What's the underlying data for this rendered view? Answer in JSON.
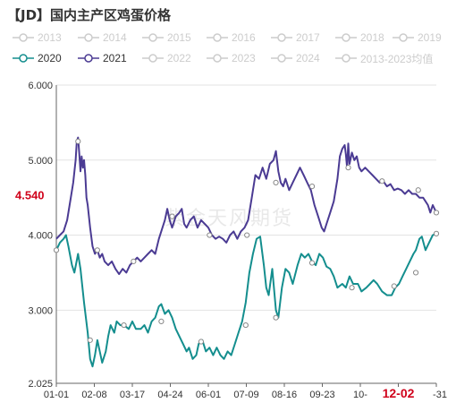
{
  "title": "【JD】国内主产区鸡蛋价格",
  "watermark": "紫金天风期货",
  "colors": {
    "s2020": "#148e8e",
    "s2021": "#4b3b93",
    "off": "#cccccc",
    "highlight": "#d0021b"
  },
  "legend": [
    {
      "label": "2013",
      "active": false
    },
    {
      "label": "2014",
      "active": false
    },
    {
      "label": "2015",
      "active": false
    },
    {
      "label": "2016",
      "active": false
    },
    {
      "label": "2017",
      "active": false
    },
    {
      "label": "2018",
      "active": false
    },
    {
      "label": "2019",
      "active": false
    },
    {
      "label": "2020",
      "active": true,
      "color": "#148e8e"
    },
    {
      "label": "2021",
      "active": true,
      "color": "#4b3b93"
    },
    {
      "label": "2022",
      "active": false
    },
    {
      "label": "2023",
      "active": false
    },
    {
      "label": "2024",
      "active": false
    },
    {
      "label": "2013-2023均值",
      "active": false
    }
  ],
  "chart_data": {
    "type": "line",
    "title": "【JD】国内主产区鸡蛋价格",
    "x_ticks": [
      "01-01",
      "02-08",
      "03-17",
      "04-24",
      "06-01",
      "07-09",
      "08-16",
      "09-23",
      "10-",
      "12-02",
      "-31"
    ],
    "y_ticks": [
      "6.000",
      "5.000",
      "4.000",
      "3.000",
      "2.025"
    ],
    "ylim": [
      2.025,
      6.0
    ],
    "current_value": "4.540",
    "highlight_x_label": "12-02",
    "grid": true,
    "series": [
      {
        "name": "2020",
        "color": "#148e8e",
        "points": [
          [
            0,
            3.8
          ],
          [
            3,
            3.9
          ],
          [
            6,
            3.95
          ],
          [
            8,
            4.0
          ],
          [
            10,
            3.85
          ],
          [
            13,
            3.6
          ],
          [
            15,
            3.5
          ],
          [
            18,
            3.75
          ],
          [
            20,
            3.55
          ],
          [
            23,
            3.1
          ],
          [
            26,
            2.7
          ],
          [
            28,
            2.35
          ],
          [
            30,
            2.25
          ],
          [
            32,
            2.4
          ],
          [
            34,
            2.6
          ],
          [
            36,
            2.45
          ],
          [
            38,
            2.3
          ],
          [
            41,
            2.45
          ],
          [
            43,
            2.65
          ],
          [
            45,
            2.8
          ],
          [
            48,
            2.7
          ],
          [
            50,
            2.85
          ],
          [
            53,
            2.8
          ],
          [
            56,
            2.8
          ],
          [
            60,
            2.75
          ],
          [
            63,
            2.85
          ],
          [
            66,
            2.75
          ],
          [
            70,
            2.75
          ],
          [
            73,
            2.8
          ],
          [
            76,
            2.7
          ],
          [
            79,
            2.85
          ],
          [
            82,
            2.9
          ],
          [
            85,
            3.05
          ],
          [
            87,
            3.08
          ],
          [
            90,
            2.95
          ],
          [
            93,
            3.0
          ],
          [
            96,
            2.9
          ],
          [
            99,
            2.75
          ],
          [
            102,
            2.65
          ],
          [
            105,
            2.55
          ],
          [
            108,
            2.45
          ],
          [
            110,
            2.5
          ],
          [
            113,
            2.35
          ],
          [
            116,
            2.4
          ],
          [
            118,
            2.55
          ],
          [
            121,
            2.6
          ],
          [
            124,
            2.45
          ],
          [
            127,
            2.5
          ],
          [
            130,
            2.4
          ],
          [
            133,
            2.5
          ],
          [
            136,
            2.4
          ],
          [
            139,
            2.35
          ],
          [
            142,
            2.45
          ],
          [
            145,
            2.4
          ],
          [
            148,
            2.55
          ],
          [
            151,
            2.7
          ],
          [
            154,
            2.85
          ],
          [
            157,
            3.1
          ],
          [
            160,
            3.5
          ],
          [
            163,
            3.75
          ],
          [
            166,
            3.95
          ],
          [
            169,
            3.98
          ],
          [
            172,
            3.6
          ],
          [
            174,
            3.3
          ],
          [
            176,
            3.2
          ],
          [
            179,
            3.55
          ],
          [
            182,
            3.0
          ],
          [
            184,
            2.9
          ],
          [
            187,
            3.3
          ],
          [
            190,
            3.55
          ],
          [
            193,
            3.5
          ],
          [
            196,
            3.35
          ],
          [
            200,
            3.6
          ],
          [
            203,
            3.75
          ],
          [
            206,
            3.7
          ],
          [
            209,
            3.75
          ],
          [
            212,
            3.65
          ],
          [
            215,
            3.6
          ],
          [
            218,
            3.75
          ],
          [
            221,
            3.7
          ],
          [
            224,
            3.58
          ],
          [
            227,
            3.55
          ],
          [
            230,
            3.45
          ],
          [
            233,
            3.3
          ],
          [
            237,
            3.35
          ],
          [
            240,
            3.3
          ],
          [
            243,
            3.45
          ],
          [
            246,
            3.35
          ],
          [
            250,
            3.35
          ],
          [
            253,
            3.25
          ],
          [
            257,
            3.3
          ],
          [
            260,
            3.35
          ],
          [
            263,
            3.4
          ],
          [
            266,
            3.35
          ],
          [
            270,
            3.25
          ],
          [
            274,
            3.2
          ],
          [
            278,
            3.2
          ],
          [
            281,
            3.3
          ],
          [
            284,
            3.35
          ],
          [
            287,
            3.45
          ],
          [
            290,
            3.55
          ],
          [
            293,
            3.65
          ],
          [
            296,
            3.75
          ],
          [
            298,
            3.8
          ],
          [
            301,
            3.95
          ],
          [
            303,
            3.98
          ],
          [
            306,
            3.8
          ],
          [
            309,
            3.9
          ],
          [
            312,
            4.0
          ],
          [
            315,
            4.02
          ]
        ],
        "markers": [
          [
            0,
            3.8
          ],
          [
            28,
            2.6
          ],
          [
            56,
            2.8
          ],
          [
            87,
            2.85
          ],
          [
            120,
            2.58
          ],
          [
            157,
            2.8
          ],
          [
            182,
            2.9
          ],
          [
            212,
            3.63
          ],
          [
            245,
            3.3
          ],
          [
            280,
            3.32
          ],
          [
            298,
            3.5
          ],
          [
            315,
            4.02
          ]
        ]
      },
      {
        "name": "2021",
        "color": "#4b3b93",
        "points": [
          [
            0,
            3.95
          ],
          [
            3,
            4.0
          ],
          [
            6,
            4.05
          ],
          [
            9,
            4.2
          ],
          [
            12,
            4.5
          ],
          [
            14,
            4.7
          ],
          [
            16,
            5.0
          ],
          [
            17,
            5.25
          ],
          [
            18,
            5.3
          ],
          [
            19,
            5.1
          ],
          [
            20,
            4.85
          ],
          [
            21,
            5.05
          ],
          [
            22,
            4.9
          ],
          [
            23,
            5.0
          ],
          [
            24,
            4.8
          ],
          [
            25,
            4.5
          ],
          [
            26,
            4.4
          ],
          [
            28,
            4.1
          ],
          [
            30,
            3.85
          ],
          [
            32,
            3.75
          ],
          [
            34,
            3.8
          ],
          [
            36,
            3.7
          ],
          [
            38,
            3.75
          ],
          [
            40,
            3.65
          ],
          [
            43,
            3.6
          ],
          [
            46,
            3.65
          ],
          [
            49,
            3.55
          ],
          [
            52,
            3.48
          ],
          [
            55,
            3.55
          ],
          [
            58,
            3.5
          ],
          [
            61,
            3.6
          ],
          [
            64,
            3.65
          ],
          [
            67,
            3.7
          ],
          [
            70,
            3.65
          ],
          [
            73,
            3.7
          ],
          [
            76,
            3.75
          ],
          [
            79,
            3.8
          ],
          [
            82,
            3.75
          ],
          [
            85,
            3.95
          ],
          [
            88,
            4.1
          ],
          [
            90,
            4.2
          ],
          [
            92,
            4.35
          ],
          [
            94,
            4.2
          ],
          [
            96,
            4.1
          ],
          [
            99,
            4.25
          ],
          [
            102,
            4.3
          ],
          [
            104,
            4.35
          ],
          [
            106,
            4.15
          ],
          [
            108,
            4.1
          ],
          [
            111,
            4.2
          ],
          [
            114,
            4.25
          ],
          [
            117,
            4.1
          ],
          [
            120,
            4.2
          ],
          [
            123,
            4.15
          ],
          [
            126,
            4.1
          ],
          [
            129,
            4.0
          ],
          [
            132,
            3.95
          ],
          [
            135,
            3.98
          ],
          [
            138,
            3.95
          ],
          [
            141,
            3.9
          ],
          [
            144,
            4.0
          ],
          [
            147,
            4.05
          ],
          [
            150,
            3.95
          ],
          [
            153,
            4.05
          ],
          [
            156,
            4.1
          ],
          [
            159,
            4.2
          ],
          [
            162,
            4.5
          ],
          [
            165,
            4.8
          ],
          [
            168,
            4.75
          ],
          [
            171,
            4.9
          ],
          [
            174,
            4.75
          ],
          [
            177,
            4.95
          ],
          [
            180,
            5.0
          ],
          [
            182,
            5.12
          ],
          [
            184,
            4.85
          ],
          [
            186,
            4.7
          ],
          [
            188,
            4.65
          ],
          [
            190,
            4.75
          ],
          [
            193,
            4.6
          ],
          [
            196,
            4.7
          ],
          [
            199,
            4.8
          ],
          [
            202,
            4.9
          ],
          [
            205,
            4.8
          ],
          [
            208,
            4.7
          ],
          [
            211,
            4.6
          ],
          [
            214,
            4.4
          ],
          [
            217,
            4.25
          ],
          [
            220,
            4.1
          ],
          [
            222,
            4.05
          ],
          [
            224,
            4.15
          ],
          [
            227,
            4.3
          ],
          [
            230,
            4.45
          ],
          [
            233,
            4.75
          ],
          [
            235,
            5.05
          ],
          [
            237,
            5.15
          ],
          [
            239,
            5.2
          ],
          [
            240,
            5.08
          ],
          [
            241,
            4.9
          ],
          [
            242,
            5.22
          ],
          [
            243,
            4.95
          ],
          [
            245,
            5.1
          ],
          [
            247,
            5.0
          ],
          [
            249,
            5.05
          ],
          [
            251,
            4.9
          ],
          [
            253,
            4.85
          ],
          [
            256,
            4.9
          ],
          [
            259,
            4.85
          ],
          [
            262,
            4.8
          ],
          [
            265,
            4.75
          ],
          [
            268,
            4.7
          ],
          [
            271,
            4.72
          ],
          [
            274,
            4.65
          ],
          [
            277,
            4.68
          ],
          [
            280,
            4.6
          ],
          [
            283,
            4.62
          ],
          [
            286,
            4.6
          ],
          [
            289,
            4.55
          ],
          [
            292,
            4.6
          ],
          [
            295,
            4.55
          ],
          [
            298,
            4.55
          ],
          [
            301,
            4.5
          ],
          [
            304,
            4.5
          ],
          [
            306,
            4.45
          ],
          [
            308,
            4.4
          ],
          [
            310,
            4.3
          ],
          [
            312,
            4.4
          ],
          [
            315,
            4.3
          ]
        ],
        "markers": [
          [
            18,
            5.25
          ],
          [
            34,
            3.8
          ],
          [
            64,
            3.65
          ],
          [
            96,
            4.25
          ],
          [
            127,
            4.0
          ],
          [
            158,
            4.0
          ],
          [
            182,
            4.7
          ],
          [
            212,
            4.65
          ],
          [
            242,
            4.9
          ],
          [
            270,
            4.72
          ],
          [
            300,
            4.6
          ],
          [
            315,
            4.3
          ]
        ]
      }
    ]
  }
}
